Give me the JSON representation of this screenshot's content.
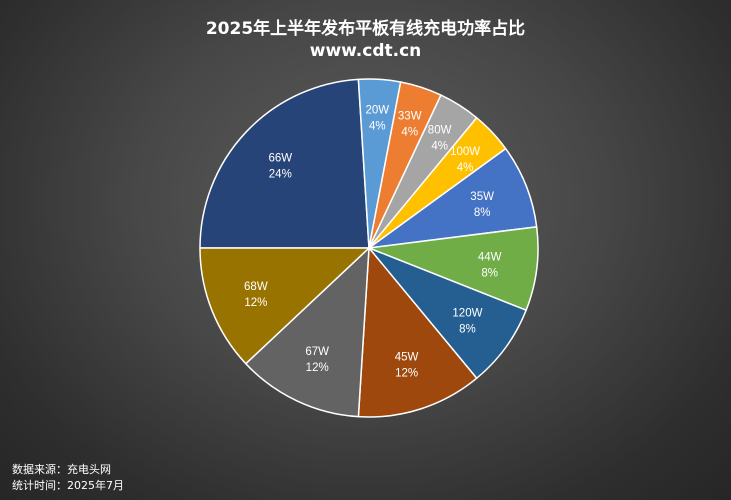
{
  "chart_data": {
    "type": "pie",
    "title": "2025年上半年发布平板有线充电功率占比",
    "subtitle": "www.cdt.cn",
    "slices": [
      {
        "label": "66W",
        "percent": 24,
        "pct_label": "24%",
        "color": "#264478"
      },
      {
        "label": "20W",
        "percent": 4,
        "pct_label": "4%",
        "color": "#5b9bd5"
      },
      {
        "label": "33W",
        "percent": 4,
        "pct_label": "4%",
        "color": "#ed7d31"
      },
      {
        "label": "80W",
        "percent": 4,
        "pct_label": "4%",
        "color": "#a5a5a5"
      },
      {
        "label": "100W",
        "percent": 4,
        "pct_label": "4%",
        "color": "#ffc000"
      },
      {
        "label": "35W",
        "percent": 8,
        "pct_label": "8%",
        "color": "#4472c4"
      },
      {
        "label": "44W",
        "percent": 8,
        "pct_label": "8%",
        "color": "#70ad47"
      },
      {
        "label": "120W",
        "percent": 8,
        "pct_label": "8%",
        "color": "#255e91"
      },
      {
        "label": "45W",
        "percent": 12,
        "pct_label": "12%",
        "color": "#9e480e"
      },
      {
        "label": "67W",
        "percent": 12,
        "pct_label": "12%",
        "color": "#636363"
      },
      {
        "label": "68W",
        "percent": 12,
        "pct_label": "12%",
        "color": "#997300"
      }
    ],
    "legend": "none",
    "slice_border_color": "#ffffff",
    "label_color": "#ffffff"
  },
  "footer": {
    "source": "数据来源：充电头网",
    "period": "统计时间：2025年7月"
  }
}
